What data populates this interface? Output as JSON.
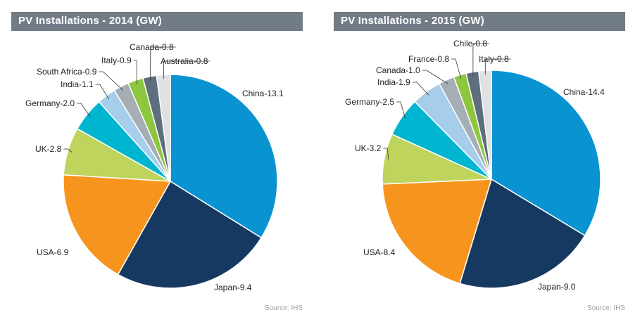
{
  "chart_data": [
    {
      "type": "pie",
      "title": "PV Installations - 2014 (GW)",
      "source": "Source: IHS",
      "slices": [
        {
          "label": "China",
          "value": 13.1,
          "color": "#0a93d1"
        },
        {
          "label": "Japan",
          "value": 9.4,
          "color": "#163962"
        },
        {
          "label": "USA",
          "value": 6.9,
          "color": "#f7941d"
        },
        {
          "label": "UK",
          "value": 2.8,
          "color": "#bed45d"
        },
        {
          "label": "Germany",
          "value": 2.0,
          "color": "#00b5cf"
        },
        {
          "label": "India",
          "value": 1.1,
          "color": "#a6cde9"
        },
        {
          "label": "South Africa",
          "value": 0.9,
          "color": "#a5adb5"
        },
        {
          "label": "Italy",
          "value": 0.9,
          "color": "#8dc63f"
        },
        {
          "label": "Canada",
          "value": 0.8,
          "color": "#5f6e7c"
        },
        {
          "label": "Australia",
          "value": 0.8,
          "color": "#dfe1e3"
        }
      ]
    },
    {
      "type": "pie",
      "title": "PV Installations - 2015 (GW)",
      "source": "Source: IHS",
      "slices": [
        {
          "label": "China",
          "value": 14.4,
          "color": "#0a93d1"
        },
        {
          "label": "Japan",
          "value": 9.0,
          "color": "#163962"
        },
        {
          "label": "USA",
          "value": 8.4,
          "color": "#f7941d"
        },
        {
          "label": "UK",
          "value": 3.2,
          "color": "#bed45d"
        },
        {
          "label": "Germany",
          "value": 2.5,
          "color": "#00b5cf"
        },
        {
          "label": "India",
          "value": 1.9,
          "color": "#a6cde9"
        },
        {
          "label": "Canada",
          "value": 1.0,
          "color": "#a5adb5"
        },
        {
          "label": "France",
          "value": 0.8,
          "color": "#8dc63f"
        },
        {
          "label": "Chile",
          "value": 0.8,
          "color": "#5f6e7c"
        },
        {
          "label": "Italy",
          "value": 0.8,
          "color": "#dfe1e3"
        }
      ]
    }
  ]
}
